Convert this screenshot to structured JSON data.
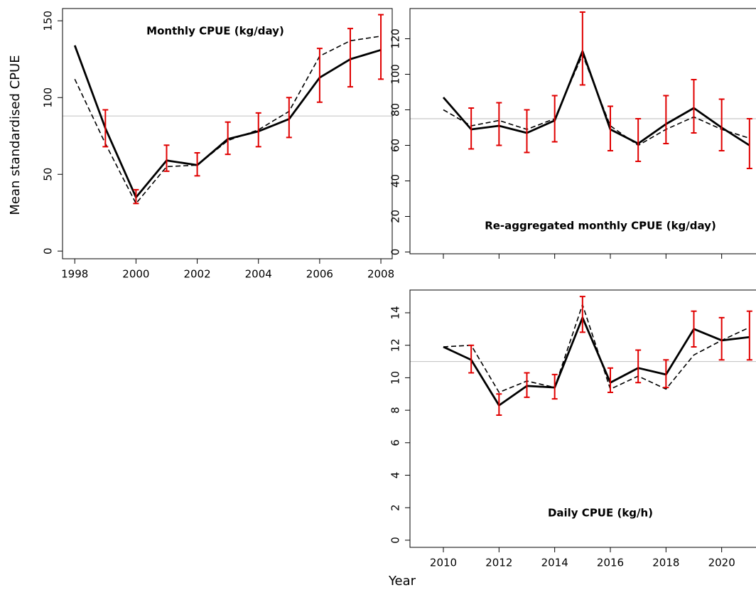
{
  "ylabel": "Mean standardised CPUE",
  "xlabel": "Year",
  "chart_data": [
    {
      "type": "line",
      "title": "Monthly CPUE (kg/day)",
      "x": [
        1998,
        1999,
        2000,
        2001,
        2002,
        2003,
        2004,
        2005,
        2006,
        2007,
        2008
      ],
      "series": [
        {
          "color": "#000000",
          "line_style": "solid",
          "values": [
            134,
            80,
            35,
            59,
            56,
            73,
            78,
            86,
            113,
            125,
            131
          ],
          "error_low": [
            null,
            68,
            31,
            52,
            49,
            63,
            68,
            74,
            97,
            107,
            112
          ],
          "error_high": [
            null,
            92,
            40,
            69,
            64,
            84,
            90,
            100,
            132,
            145,
            154
          ]
        },
        {
          "color": "#000000",
          "line_style": "dashed",
          "values": [
            112,
            70,
            31,
            55,
            56,
            72,
            79,
            91,
            127,
            137,
            140
          ]
        }
      ],
      "error_color": "#e00000",
      "hline": 88,
      "hline_color": "#c8c8c8",
      "xlim": [
        1997.6,
        2008.37
      ],
      "ylim": [
        -5,
        158
      ],
      "xticks": [
        1998,
        2000,
        2002,
        2004,
        2006,
        2008
      ],
      "yticks": [
        0,
        50,
        100,
        150
      ]
    },
    {
      "type": "line",
      "title": "Re-aggregated monthly CPUE (kg/day)",
      "x": [
        2010,
        2011,
        2012,
        2013,
        2014,
        2015,
        2016,
        2017,
        2018,
        2019,
        2020,
        2021
      ],
      "series": [
        {
          "color": "#000000",
          "line_style": "solid",
          "values": [
            87,
            69,
            71,
            67,
            74,
            113,
            69,
            61,
            72,
            81,
            70,
            60
          ],
          "error_low": [
            null,
            58,
            60,
            56,
            62,
            94,
            57,
            51,
            61,
            67,
            57,
            47
          ],
          "error_high": [
            null,
            81,
            84,
            80,
            88,
            135,
            82,
            75,
            88,
            97,
            86,
            75
          ]
        },
        {
          "color": "#000000",
          "line_style": "dashed",
          "values": [
            80,
            71,
            74,
            69,
            75,
            111,
            71,
            60,
            69,
            76,
            69,
            64
          ]
        }
      ],
      "error_color": "#e00000",
      "hline": 75,
      "hline_color": "#c8c8c8",
      "xlim": [
        2008.8,
        2022
      ],
      "ylim": [
        -1,
        137
      ],
      "xticks": [
        {
          "value": 2010,
          "label": null
        },
        {
          "value": 2012,
          "label": null
        },
        {
          "value": 2014,
          "label": null
        },
        {
          "value": 2016,
          "label": null
        },
        {
          "value": 2018,
          "label": null
        },
        {
          "value": 2020,
          "label": null
        }
      ],
      "yticks": [
        0,
        20,
        40,
        60,
        80,
        100,
        120
      ]
    },
    {
      "type": "line",
      "title": "Daily CPUE (kg/h)",
      "x": [
        2010,
        2011,
        2012,
        2013,
        2014,
        2015,
        2016,
        2017,
        2018,
        2019,
        2020,
        2021
      ],
      "series": [
        {
          "color": "#000000",
          "line_style": "solid",
          "values": [
            11.9,
            11.1,
            8.3,
            9.5,
            9.4,
            13.7,
            9.7,
            10.6,
            10.2,
            13.0,
            12.3,
            12.5
          ],
          "error_low": [
            null,
            10.3,
            7.7,
            8.8,
            8.7,
            12.8,
            9.1,
            9.7,
            9.4,
            11.9,
            11.1,
            11.1
          ],
          "error_high": [
            null,
            12.0,
            9.0,
            10.3,
            10.2,
            15.0,
            10.6,
            11.7,
            11.1,
            14.1,
            13.7,
            14.1
          ]
        },
        {
          "color": "#000000",
          "line_style": "dashed",
          "values": [
            11.9,
            12.0,
            9.1,
            9.8,
            9.4,
            14.5,
            9.3,
            10.1,
            9.3,
            11.4,
            12.3,
            13.1
          ]
        }
      ],
      "error_color": "#e00000",
      "hline": 11.0,
      "hline_color": "#c8c8c8",
      "xlim": [
        2008.8,
        2022
      ],
      "ylim": [
        -0.44,
        15.4
      ],
      "xticks": [
        2010,
        2012,
        2014,
        2016,
        2018,
        2020
      ],
      "yticks": [
        0,
        2,
        4,
        6,
        8,
        10,
        12,
        14
      ]
    }
  ]
}
